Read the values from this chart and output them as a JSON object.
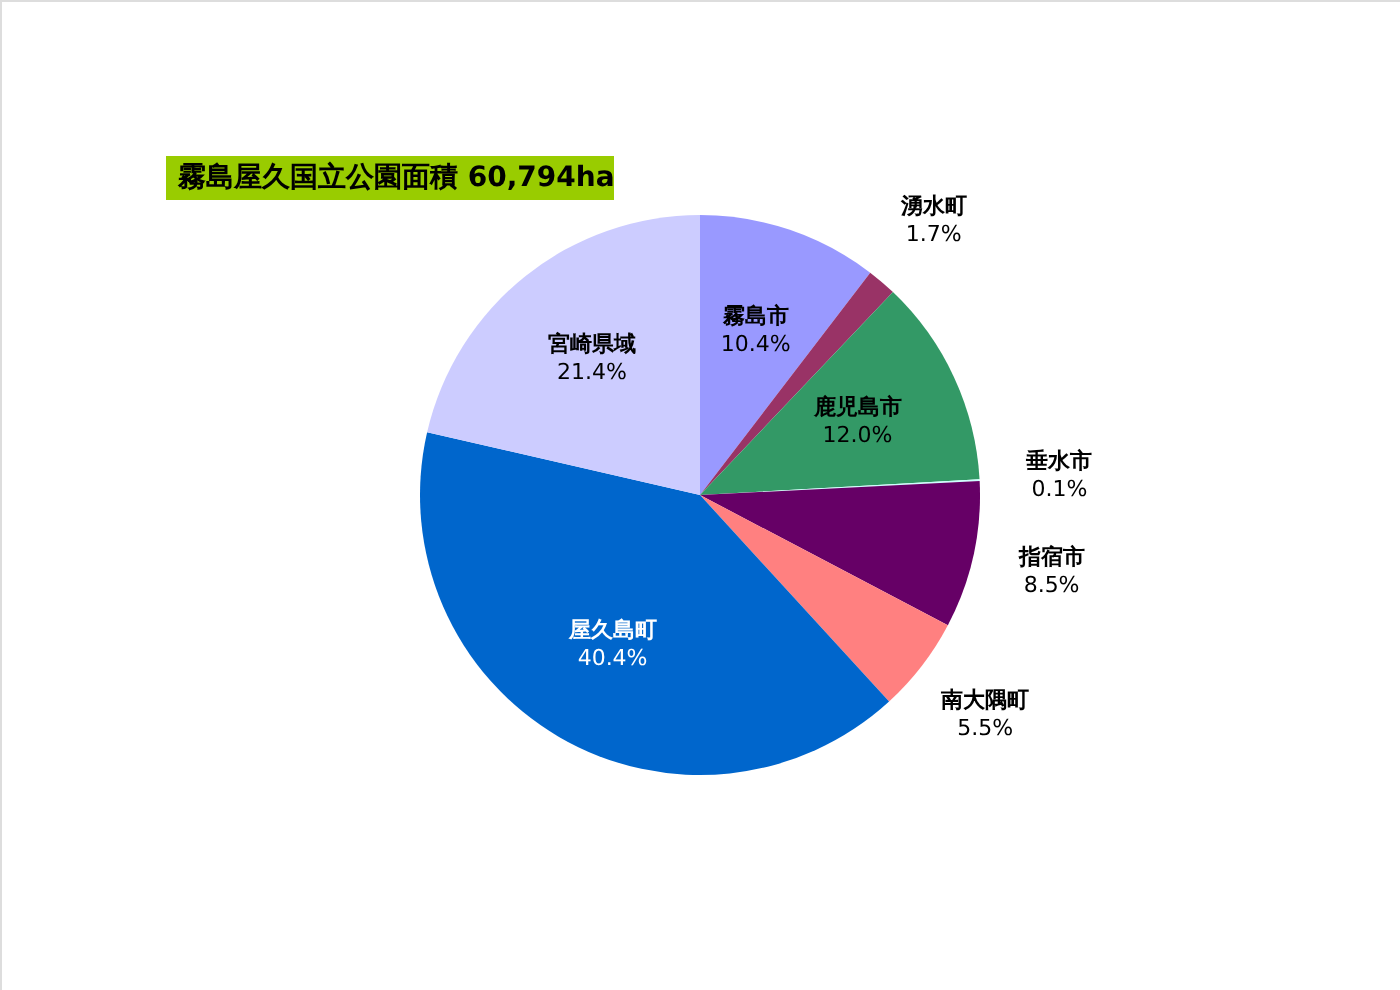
{
  "chart_data": {
    "type": "pie",
    "title": "霧島屋久国立公園面積 60,794ha",
    "categories": [
      "霧島市",
      "湧水町",
      "鹿児島市",
      "垂水市",
      "指宿市",
      "南大隅町",
      "屋久島町",
      "宮崎県域"
    ],
    "values": [
      10.4,
      1.7,
      12.0,
      0.1,
      8.5,
      5.5,
      40.4,
      21.4
    ],
    "colors": [
      "#9999ff",
      "#993366",
      "#339966",
      "#ccffff",
      "#660066",
      "#ff8080",
      "#0066cc",
      "#ccccff"
    ],
    "value_labels": [
      "10.4%",
      "1.7%",
      "12.0%",
      "0.1%",
      "8.5%",
      "5.5%",
      "40.4%",
      "21.4%"
    ]
  }
}
